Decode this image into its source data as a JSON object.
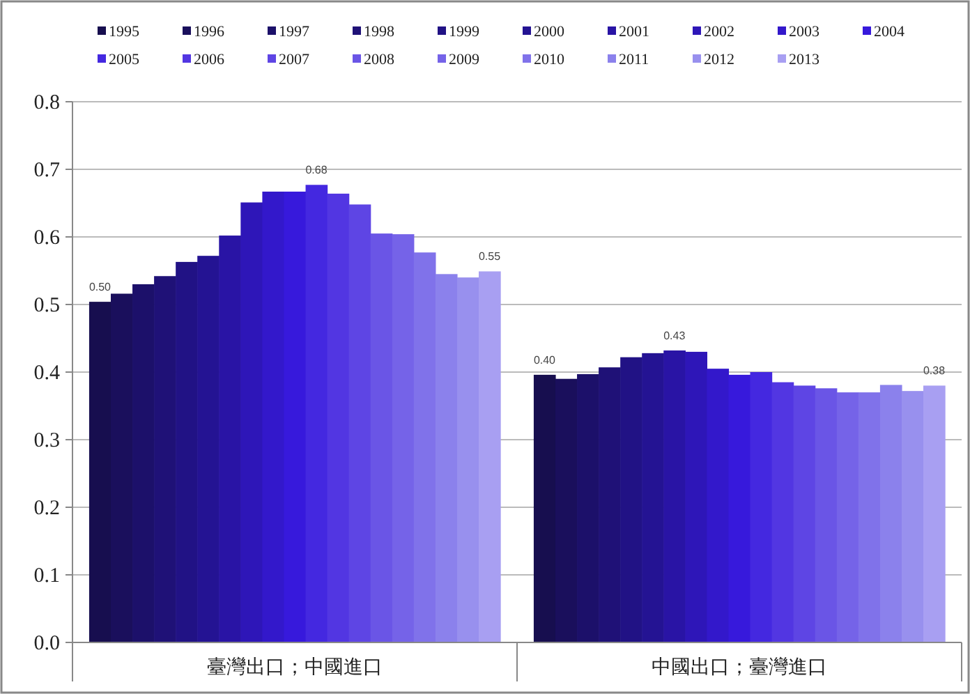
{
  "chart_data": {
    "type": "bar",
    "categories": [
      "臺灣出口；中國進口",
      "中國出口；臺灣進口"
    ],
    "ylim": [
      0,
      0.8
    ],
    "yticks": [
      {
        "value": 0,
        "label": "0.0"
      },
      {
        "value": 0.1,
        "label": "0.1"
      },
      {
        "value": 0.2,
        "label": "0.2"
      },
      {
        "value": 0.3,
        "label": "0.3"
      },
      {
        "value": 0.4,
        "label": "0.4"
      },
      {
        "value": 0.5,
        "label": "0.5"
      },
      {
        "value": 0.6,
        "label": "0.6"
      },
      {
        "value": 0.7,
        "label": "0.7"
      },
      {
        "value": 0.8,
        "label": "0.8"
      }
    ],
    "grid": "y",
    "legend": "top",
    "series": [
      {
        "name": "1995",
        "color": "#170e4f",
        "values": [
          0.504,
          0.396
        ],
        "value_labels": [
          "0.50",
          "0.40"
        ]
      },
      {
        "name": "1996",
        "color": "#1a0f5c",
        "values": [
          0.516,
          0.39
        ]
      },
      {
        "name": "1997",
        "color": "#1c106a",
        "values": [
          0.53,
          0.397
        ]
      },
      {
        "name": "1998",
        "color": "#1f1177",
        "values": [
          0.542,
          0.407
        ]
      },
      {
        "name": "1999",
        "color": "#211285",
        "values": [
          0.563,
          0.422
        ]
      },
      {
        "name": "2000",
        "color": "#241393",
        "values": [
          0.572,
          0.428
        ]
      },
      {
        "name": "2001",
        "color": "#2914a5",
        "values": [
          0.602,
          0.432
        ],
        "value_labels": [
          null,
          "0.43"
        ]
      },
      {
        "name": "2002",
        "color": "#2e16b8",
        "values": [
          0.651,
          0.43
        ]
      },
      {
        "name": "2003",
        "color": "#3318cb",
        "values": [
          0.667,
          0.405
        ]
      },
      {
        "name": "2004",
        "color": "#3719dc",
        "values": [
          0.667,
          0.396
        ]
      },
      {
        "name": "2005",
        "color": "#4428e0",
        "values": [
          0.677,
          0.4
        ],
        "value_labels": [
          "0.68",
          null
        ]
      },
      {
        "name": "2006",
        "color": "#5236e2",
        "values": [
          0.664,
          0.385
        ]
      },
      {
        "name": "2007",
        "color": "#5e45e4",
        "values": [
          0.648,
          0.38
        ]
      },
      {
        "name": "2008",
        "color": "#6a55e6",
        "values": [
          0.605,
          0.376
        ]
      },
      {
        "name": "2009",
        "color": "#7563e8",
        "values": [
          0.604,
          0.37
        ]
      },
      {
        "name": "2010",
        "color": "#8072ea",
        "values": [
          0.577,
          0.37
        ]
      },
      {
        "name": "2011",
        "color": "#8b81ec",
        "values": [
          0.545,
          0.381
        ]
      },
      {
        "name": "2012",
        "color": "#9890ee",
        "values": [
          0.54,
          0.372
        ]
      },
      {
        "name": "2013",
        "color": "#a89ff2",
        "values": [
          0.549,
          0.38
        ],
        "value_labels": [
          "0.55",
          "0.38"
        ]
      }
    ]
  }
}
